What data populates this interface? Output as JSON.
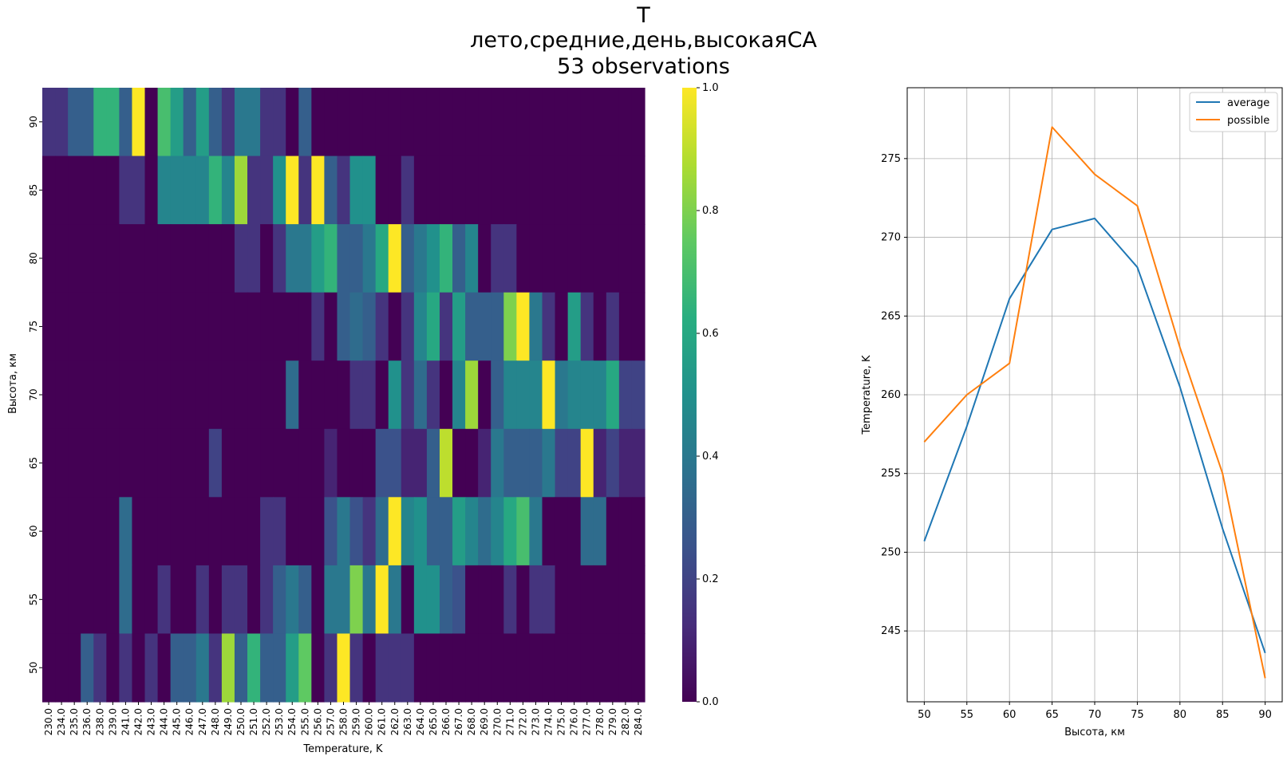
{
  "figure": {
    "title_lines": [
      "T",
      "лето,средние,день,высокаяСА",
      "53 observations"
    ]
  },
  "chart_data": [
    {
      "type": "heatmap",
      "xlabel": "Temperature, K",
      "ylabel": "Высота, км",
      "x_ticks": [
        "230.0",
        "234.0",
        "235.0",
        "236.0",
        "238.0",
        "239.0",
        "241.0",
        "242.0",
        "243.0",
        "244.0",
        "245.0",
        "246.0",
        "247.0",
        "248.0",
        "249.0",
        "250.0",
        "251.0",
        "252.0",
        "253.0",
        "254.0",
        "255.0",
        "256.0",
        "257.0",
        "258.0",
        "259.0",
        "260.0",
        "261.0",
        "262.0",
        "263.0",
        "264.0",
        "265.0",
        "266.0",
        "267.0",
        "268.0",
        "269.0",
        "270.0",
        "271.0",
        "272.0",
        "273.0",
        "274.0",
        "275.0",
        "276.0",
        "277.0",
        "278.0",
        "279.0",
        "282.0",
        "284.0"
      ],
      "y_ticks": [
        "90",
        "85",
        "80",
        "75",
        "70",
        "65",
        "60",
        "55",
        "50"
      ],
      "colorbar": {
        "colormap": "viridis",
        "min": 0.0,
        "max": 1.0,
        "ticks": [
          "0.0",
          "0.2",
          "0.4",
          "0.6",
          "0.8",
          "1.0"
        ]
      },
      "values": [
        [
          0.15,
          0.15,
          0.3,
          0.3,
          0.65,
          0.65,
          0.3,
          1.0,
          0.0,
          0.7,
          0.55,
          0.3,
          0.55,
          0.3,
          0.15,
          0.4,
          0.4,
          0.15,
          0.15,
          0.0,
          0.3,
          0,
          0,
          0,
          0,
          0,
          0,
          0,
          0,
          0,
          0,
          0,
          0,
          0,
          0,
          0,
          0,
          0,
          0,
          0,
          0,
          0,
          0,
          0,
          0,
          0,
          0
        ],
        [
          0,
          0,
          0,
          0,
          0,
          0,
          0.15,
          0.15,
          0,
          0.45,
          0.45,
          0.45,
          0.45,
          0.65,
          0.45,
          0.85,
          0.15,
          0.15,
          0.5,
          1.0,
          0.15,
          1.0,
          0.3,
          0.15,
          0.5,
          0.5,
          0,
          0,
          0.15,
          0,
          0,
          0,
          0,
          0,
          0,
          0,
          0,
          0,
          0,
          0,
          0,
          0,
          0,
          0,
          0,
          0,
          0
        ],
        [
          0,
          0,
          0,
          0,
          0,
          0,
          0,
          0,
          0,
          0,
          0,
          0,
          0,
          0,
          0,
          0.15,
          0.15,
          0,
          0.15,
          0.4,
          0.4,
          0.55,
          0.65,
          0.3,
          0.3,
          0.4,
          0.6,
          1.0,
          0.3,
          0.4,
          0.5,
          0.65,
          0.3,
          0.45,
          0,
          0.15,
          0.15,
          0,
          0,
          0,
          0,
          0,
          0,
          0,
          0,
          0,
          0
        ],
        [
          0,
          0,
          0,
          0,
          0,
          0,
          0,
          0,
          0,
          0,
          0,
          0,
          0,
          0,
          0,
          0,
          0,
          0,
          0,
          0,
          0,
          0.15,
          0,
          0.3,
          0.35,
          0.3,
          0.15,
          0,
          0.15,
          0.45,
          0.6,
          0.15,
          0.55,
          0.3,
          0.3,
          0.3,
          0.8,
          1.0,
          0.4,
          0.15,
          0,
          0.55,
          0.15,
          0,
          0.15,
          0,
          0
        ],
        [
          0,
          0,
          0,
          0,
          0,
          0,
          0,
          0,
          0,
          0,
          0,
          0,
          0,
          0,
          0,
          0,
          0,
          0,
          0,
          0.35,
          0,
          0,
          0,
          0,
          0.15,
          0.15,
          0,
          0.5,
          0.15,
          0.35,
          0.15,
          0,
          0.45,
          0.85,
          0,
          0.3,
          0.45,
          0.45,
          0.45,
          1.0,
          0.4,
          0.45,
          0.45,
          0.45,
          0.6,
          0.2,
          0.2
        ],
        [
          0,
          0,
          0,
          0,
          0,
          0,
          0,
          0,
          0,
          0,
          0,
          0,
          0,
          0.2,
          0,
          0,
          0,
          0,
          0,
          0,
          0,
          0,
          0.1,
          0,
          0,
          0,
          0.25,
          0.25,
          0.1,
          0.1,
          0.3,
          0.9,
          0,
          0,
          0.1,
          0.4,
          0.3,
          0.3,
          0.3,
          0.4,
          0.2,
          0.2,
          1.0,
          0.1,
          0.2,
          0.1,
          0.1
        ],
        [
          0,
          0,
          0,
          0,
          0,
          0,
          0.35,
          0,
          0,
          0,
          0,
          0,
          0,
          0,
          0,
          0,
          0,
          0.15,
          0.15,
          0,
          0,
          0,
          0.25,
          0.4,
          0.25,
          0.15,
          0.35,
          1.0,
          0.45,
          0.5,
          0.3,
          0.3,
          0.55,
          0.45,
          0.35,
          0.45,
          0.6,
          0.7,
          0.4,
          0,
          0,
          0,
          0.35,
          0.35,
          0,
          0,
          0
        ],
        [
          0,
          0,
          0,
          0,
          0,
          0,
          0.35,
          0,
          0,
          0.15,
          0,
          0,
          0.15,
          0,
          0.15,
          0.15,
          0,
          0.15,
          0.3,
          0.4,
          0.3,
          0,
          0.4,
          0.4,
          0.8,
          0.4,
          1.0,
          0.4,
          0,
          0.5,
          0.5,
          0.3,
          0.25,
          0,
          0,
          0,
          0.15,
          0,
          0.15,
          0.15,
          0,
          0,
          0,
          0,
          0,
          0,
          0
        ],
        [
          0,
          0,
          0,
          0.3,
          0.15,
          0,
          0.15,
          0,
          0.15,
          0,
          0.3,
          0.3,
          0.4,
          0.15,
          0.85,
          0.3,
          0.65,
          0.3,
          0.3,
          0.55,
          0.75,
          0,
          0.15,
          1.0,
          0.15,
          0,
          0.15,
          0.15,
          0.15,
          0,
          0,
          0,
          0,
          0,
          0,
          0,
          0,
          0,
          0,
          0,
          0,
          0,
          0,
          0,
          0,
          0,
          0
        ]
      ]
    },
    {
      "type": "line",
      "xlabel": "Высота, км",
      "ylabel": "Temperature, K",
      "x": [
        50,
        55,
        60,
        65,
        70,
        75,
        80,
        85,
        90
      ],
      "xlim": [
        48,
        92
      ],
      "ylim": [
        240.5,
        279.5
      ],
      "x_ticks": [
        "50",
        "55",
        "60",
        "65",
        "70",
        "75",
        "80",
        "85",
        "90"
      ],
      "y_ticks": [
        "245",
        "250",
        "255",
        "260",
        "265",
        "270",
        "275"
      ],
      "grid": true,
      "legend_position": "top-right",
      "series": [
        {
          "name": "average",
          "color": "#1f77b4",
          "values": [
            250.7,
            258.0,
            266.1,
            270.5,
            271.2,
            268.1,
            260.5,
            251.5,
            243.6
          ]
        },
        {
          "name": "possible",
          "color": "#ff7f0e",
          "values": [
            257.0,
            260.0,
            262.0,
            277.0,
            274.0,
            272.0,
            263.0,
            255.0,
            242.0
          ]
        }
      ]
    }
  ]
}
